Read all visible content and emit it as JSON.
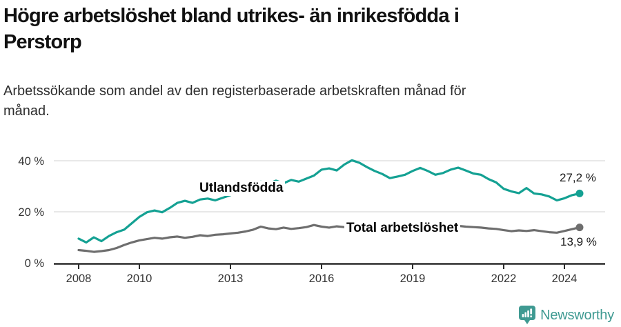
{
  "header": {
    "title_line1": "Högre arbetslöshet bland utrikes- än inrikesfödda i",
    "title_line2": "Perstorp",
    "subtitle_line1": "Arbetssökande som andel av den registerbaserade arbetskraften månad för",
    "subtitle_line2": "månad."
  },
  "chart_data": {
    "type": "line",
    "title": "Högre arbetslöshet bland utrikes- än inrikesfödda i Perstorp",
    "subtitle": "Arbetssökande som andel av den registerbaserade arbetskraften månad för månad.",
    "y_unit": "%",
    "xlim": [
      2007.2,
      2025.4
    ],
    "ylim": [
      0,
      42
    ],
    "grid": "horizontal",
    "legend_position": "inline-labels",
    "x_ticks": [
      {
        "value": 2008,
        "label": "2008"
      },
      {
        "value": 2010,
        "label": "2010"
      },
      {
        "value": 2013,
        "label": "2013"
      },
      {
        "value": 2016,
        "label": "2016"
      },
      {
        "value": 2019,
        "label": "2019"
      },
      {
        "value": 2022,
        "label": "2022"
      },
      {
        "value": 2024,
        "label": "2024"
      }
    ],
    "y_ticks": [
      {
        "value": 0,
        "label": "0 %"
      },
      {
        "value": 20,
        "label": "20 %"
      },
      {
        "value": 40,
        "label": "40 %"
      }
    ],
    "x": [
      2008,
      2008.25,
      2008.5,
      2008.75,
      2009,
      2009.25,
      2009.5,
      2009.75,
      2010,
      2010.25,
      2010.5,
      2010.75,
      2011,
      2011.25,
      2011.5,
      2011.75,
      2012,
      2012.25,
      2012.5,
      2012.75,
      2013,
      2013.25,
      2013.5,
      2013.75,
      2014,
      2014.25,
      2014.5,
      2014.75,
      2015,
      2015.25,
      2015.5,
      2015.75,
      2016,
      2016.25,
      2016.5,
      2016.75,
      2017,
      2017.25,
      2017.5,
      2017.75,
      2018,
      2018.25,
      2018.5,
      2018.75,
      2019,
      2019.25,
      2019.5,
      2019.75,
      2020,
      2020.25,
      2020.5,
      2020.75,
      2021,
      2021.25,
      2021.5,
      2021.75,
      2022,
      2022.25,
      2022.5,
      2022.75,
      2023,
      2023.25,
      2023.5,
      2023.75,
      2024,
      2024.25,
      2024.5
    ],
    "series": [
      {
        "id": "utlandsfodda",
        "name": "Utlandsfödda",
        "color": "#14a193",
        "end_label": "27,2 %",
        "end_value": 27.2,
        "values": [
          9.5,
          8.0,
          10.0,
          8.5,
          10.5,
          12.0,
          13.0,
          15.5,
          18.0,
          19.8,
          20.5,
          19.8,
          21.5,
          23.5,
          24.3,
          23.5,
          24.8,
          25.2,
          24.5,
          25.5,
          26.5,
          28.5,
          27.5,
          30.0,
          31.8,
          31.0,
          32.2,
          31.2,
          32.5,
          31.8,
          33.0,
          34.2,
          36.5,
          37.0,
          36.2,
          38.5,
          40.2,
          39.2,
          37.5,
          36.0,
          34.8,
          33.2,
          33.8,
          34.5,
          36.0,
          37.2,
          36.0,
          34.5,
          35.2,
          36.5,
          37.3,
          36.2,
          35.0,
          34.5,
          32.8,
          31.5,
          29.0,
          28.0,
          27.3,
          29.3,
          27.2,
          26.8,
          26.0,
          24.5,
          25.3,
          26.5,
          27.2
        ]
      },
      {
        "id": "total",
        "name": "Total arbetslöshet",
        "color": "#6e6e6e",
        "end_label": "13,9 %",
        "end_value": 13.9,
        "values": [
          5.0,
          4.7,
          4.3,
          4.6,
          5.0,
          5.8,
          7.0,
          8.0,
          8.8,
          9.3,
          9.8,
          9.5,
          10.0,
          10.3,
          9.8,
          10.2,
          10.8,
          10.5,
          11.0,
          11.2,
          11.5,
          11.8,
          12.3,
          13.0,
          14.2,
          13.5,
          13.2,
          13.8,
          13.3,
          13.6,
          14.0,
          14.8,
          14.2,
          13.8,
          14.3,
          14.0,
          13.8,
          14.2,
          13.9,
          13.6,
          13.8,
          14.0,
          13.7,
          13.9,
          14.0,
          13.8,
          13.6,
          13.9,
          14.0,
          14.8,
          14.5,
          14.2,
          14.0,
          13.8,
          13.5,
          13.3,
          12.8,
          12.4,
          12.7,
          12.5,
          12.8,
          12.4,
          12.0,
          11.8,
          12.5,
          13.2,
          13.9
        ]
      }
    ]
  },
  "colors": {
    "accent_teal": "#14a193",
    "series_gray": "#6e6e6e",
    "grid": "#e0e0e0",
    "axis": "#2b2b2b",
    "text_dark": "#111111",
    "logo_teal": "#3f9a92"
  },
  "branding": {
    "logo_text": "Newsworthy",
    "logo_icon": "bar-chart-speech-bubble-icon"
  }
}
